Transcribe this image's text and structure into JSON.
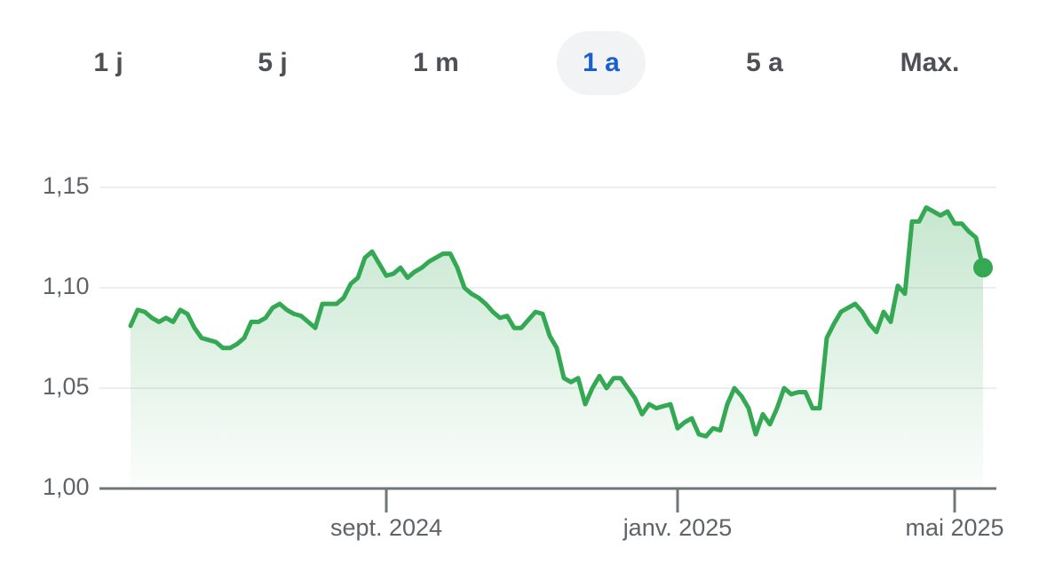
{
  "tabs": [
    "1 j",
    "5 j",
    "1 m",
    "1 a",
    "5 a",
    "Max."
  ],
  "selected_tab": 3,
  "chart_data": {
    "type": "line",
    "categories": [
      null,
      null,
      null,
      null,
      null,
      null,
      null,
      null,
      null,
      null,
      null,
      null,
      null,
      null,
      null,
      null,
      null,
      null,
      null,
      null,
      null,
      null,
      null,
      null,
      null,
      null,
      null,
      null,
      null,
      null,
      null,
      null,
      null,
      null,
      null,
      null,
      "sept. 2024",
      null,
      null,
      null,
      null,
      null,
      null,
      null,
      null,
      null,
      null,
      null,
      null,
      null,
      null,
      null,
      null,
      null,
      null,
      null,
      null,
      null,
      null,
      null,
      null,
      null,
      null,
      null,
      null,
      null,
      null,
      null,
      null,
      null,
      null,
      null,
      null,
      null,
      null,
      null,
      null,
      "janv. 2025",
      null,
      null,
      null,
      null,
      null,
      null,
      null,
      null,
      null,
      null,
      null,
      null,
      null,
      null,
      null,
      null,
      null,
      null,
      null,
      null,
      null,
      null,
      null,
      null,
      null,
      null,
      null,
      null,
      null,
      null,
      null,
      null,
      null,
      null,
      null,
      null,
      null,
      null,
      "mai 2025",
      null,
      null,
      null,
      null
    ],
    "values": [
      1.081,
      1.089,
      1.088,
      1.085,
      1.083,
      1.085,
      1.083,
      1.089,
      1.087,
      1.08,
      1.075,
      1.074,
      1.073,
      1.07,
      1.07,
      1.072,
      1.075,
      1.083,
      1.083,
      1.085,
      1.09,
      1.092,
      1.089,
      1.087,
      1.086,
      1.083,
      1.08,
      1.092,
      1.092,
      1.092,
      1.095,
      1.102,
      1.105,
      1.115,
      1.118,
      1.112,
      1.106,
      1.107,
      1.11,
      1.105,
      1.108,
      1.11,
      1.113,
      1.115,
      1.117,
      1.117,
      1.11,
      1.1,
      1.097,
      1.095,
      1.092,
      1.088,
      1.085,
      1.086,
      1.08,
      1.08,
      1.084,
      1.088,
      1.087,
      1.076,
      1.07,
      1.055,
      1.053,
      1.055,
      1.042,
      1.05,
      1.056,
      1.05,
      1.055,
      1.055,
      1.05,
      1.045,
      1.037,
      1.042,
      1.04,
      1.041,
      1.042,
      1.03,
      1.033,
      1.035,
      1.027,
      1.026,
      1.03,
      1.029,
      1.042,
      1.05,
      1.046,
      1.04,
      1.027,
      1.037,
      1.032,
      1.04,
      1.05,
      1.047,
      1.048,
      1.048,
      1.04,
      1.04,
      1.075,
      1.082,
      1.088,
      1.09,
      1.092,
      1.088,
      1.082,
      1.078,
      1.088,
      1.083,
      1.101,
      1.097,
      1.133,
      1.133,
      1.14,
      1.138,
      1.136,
      1.138,
      1.132,
      1.132,
      1.128,
      1.125,
      1.11
    ],
    "color": "#34a853",
    "ylim": [
      1.0,
      1.15
    ],
    "yticks": [
      {
        "value": 1.0,
        "label": "1,00"
      },
      {
        "value": 1.05,
        "label": "1,05"
      },
      {
        "value": 1.1,
        "label": "1,10"
      },
      {
        "value": 1.15,
        "label": "1,15"
      }
    ],
    "grid": true
  }
}
